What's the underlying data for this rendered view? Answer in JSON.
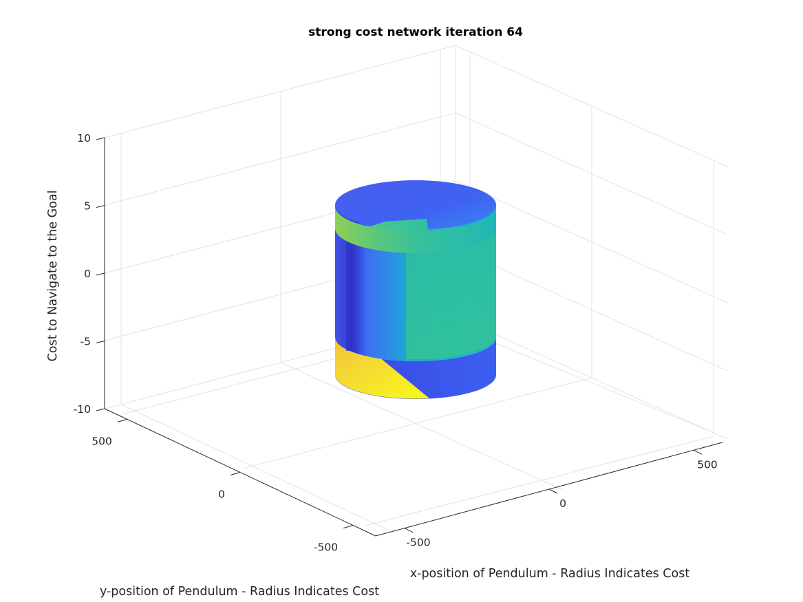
{
  "chart_data": {
    "type": "surface3d",
    "title": "strong cost network iteration 64",
    "xlabel": "x-position of Pendulum - Radius Indicates Cost",
    "ylabel": "y-position of Pendulum - Radius Indicates Cost",
    "zlabel": "Cost to Navigate to the Goal",
    "xlim": [
      -600,
      600
    ],
    "ylim": [
      -600,
      600
    ],
    "zlim": [
      -10,
      10
    ],
    "xticks": [
      "-500",
      "0",
      "500"
    ],
    "yticks": [
      "-500",
      "0",
      "500"
    ],
    "zticks": [
      "-10",
      "-5",
      "0",
      "5",
      "10"
    ],
    "grid": true,
    "colormap": "parula",
    "surface": {
      "shape": "cylinder",
      "z_range": [
        -8,
        6.5
      ],
      "colors": {
        "dark_blue": "#3a3ee0",
        "blue": "#3e6ff2",
        "cyan": "#14b8c7",
        "teal": "#27bfa6",
        "green": "#6fcb6c",
        "yellow": "#f5e43a",
        "bright_yellow": "#f8fa15"
      }
    }
  }
}
